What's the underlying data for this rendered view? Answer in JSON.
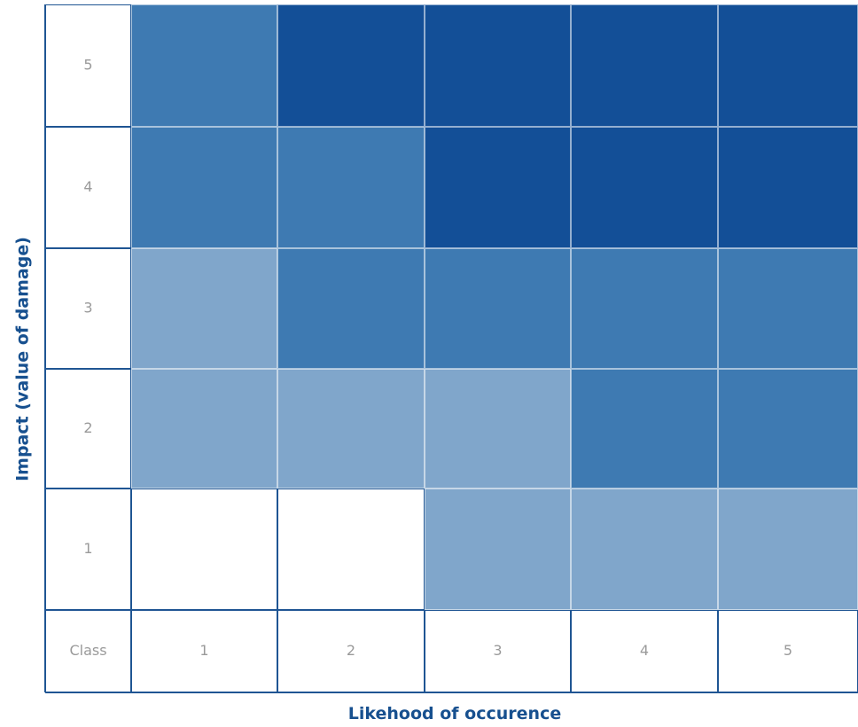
{
  "chart_data": {
    "type": "heatmap",
    "title": "",
    "xlabel": "Likehood of occurence",
    "ylabel": "Impact (value of damage)",
    "corner_label": "Class",
    "x_categories": [
      "1",
      "2",
      "3",
      "4",
      "5"
    ],
    "y_categories": [
      "5",
      "4",
      "3",
      "2",
      "1"
    ],
    "levels": {
      "0": "#ffffff",
      "1": "#80a6cb",
      "2": "#3e7ab2",
      "3": "#134f97"
    },
    "rows": [
      [
        2,
        3,
        3,
        3,
        3
      ],
      [
        2,
        2,
        3,
        3,
        3
      ],
      [
        1,
        2,
        2,
        2,
        2
      ],
      [
        1,
        1,
        1,
        2,
        2
      ],
      [
        0,
        0,
        1,
        1,
        1
      ]
    ],
    "frame_color": "#1f5593",
    "tick_color": "#9a9a9a",
    "title_color": "#17508f"
  }
}
